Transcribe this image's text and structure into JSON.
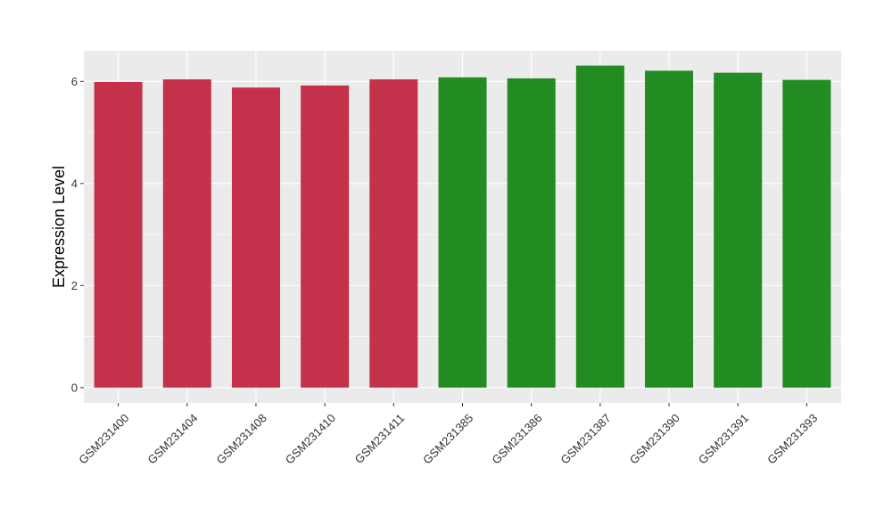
{
  "chart_data": {
    "type": "bar",
    "title": "",
    "xlabel": "",
    "ylabel": "Expression Level",
    "ylim": [
      -0.3,
      6.6
    ],
    "yticks": [
      0,
      2,
      4,
      6
    ],
    "categories": [
      "GSM231400",
      "GSM231404",
      "GSM231408",
      "GSM231410",
      "GSM231411",
      "GSM231385",
      "GSM231386",
      "GSM231387",
      "GSM231390",
      "GSM231391",
      "GSM231393"
    ],
    "values": [
      5.99,
      6.04,
      5.88,
      5.92,
      6.04,
      6.08,
      6.06,
      6.31,
      6.21,
      6.17,
      6.03
    ],
    "bar_colors": [
      "#c3314a",
      "#c3314a",
      "#c3314a",
      "#c3314a",
      "#c3314a",
      "#228b22",
      "#228b22",
      "#228b22",
      "#228b22",
      "#228b22",
      "#228b22"
    ],
    "grid": true,
    "panel_background": "#ebebeb",
    "grid_color": "#ffffff"
  }
}
